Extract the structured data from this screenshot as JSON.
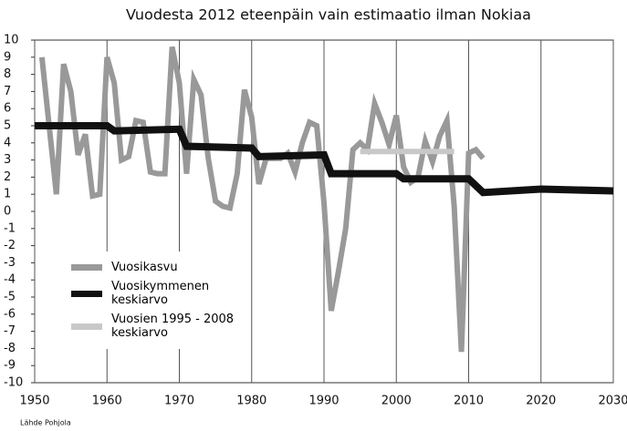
{
  "chart_data": {
    "type": "line",
    "title": "Vuodesta 2012 eteenpäin vain estimaatio ilman Nokiaa",
    "source": "Lähde Pohjola",
    "xlim": [
      1950,
      2030
    ],
    "xticks": [
      1950,
      1960,
      1970,
      1980,
      1990,
      2000,
      2010,
      2020,
      2030
    ],
    "ylim": [
      -10,
      10
    ],
    "yticks": [
      10,
      9,
      8,
      7,
      6,
      5,
      4,
      3,
      2,
      1,
      0,
      -1,
      -2,
      -3,
      -4,
      -5,
      -6,
      -7,
      -8,
      -9,
      -10
    ],
    "grid": true,
    "legend": "lower left",
    "series": [
      {
        "name": "Vuosikasvu",
        "color": "#999999",
        "x": [
          1951,
          1952,
          1953,
          1954,
          1955,
          1956,
          1957,
          1958,
          1959,
          1960,
          1961,
          1962,
          1963,
          1964,
          1965,
          1966,
          1967,
          1968,
          1969,
          1970,
          1971,
          1972,
          1973,
          1974,
          1975,
          1976,
          1977,
          1978,
          1979,
          1980,
          1981,
          1982,
          1983,
          1984,
          1985,
          1986,
          1987,
          1988,
          1989,
          1990,
          1991,
          1992,
          1993,
          1994,
          1995,
          1996,
          1997,
          1998,
          1999,
          2000,
          2001,
          2002,
          2003,
          2004,
          2005,
          2006,
          2007,
          2008,
          2009,
          2010,
          2011,
          2012
        ],
        "values": [
          9,
          5,
          1,
          8.6,
          7,
          3.3,
          4.5,
          0.9,
          1,
          9,
          7.5,
          3,
          3.2,
          5.3,
          5.2,
          2.3,
          2.2,
          2.2,
          9.6,
          7.5,
          2.2,
          7.7,
          6.8,
          3.1,
          0.6,
          0.3,
          0.2,
          2.2,
          7.1,
          5.5,
          1.6,
          3.1,
          3.1,
          3.1,
          3.4,
          2.3,
          4,
          5.2,
          5,
          0.5,
          -5.8,
          -3.5,
          -1,
          3.6,
          4,
          3.6,
          6.3,
          5.2,
          3.9,
          5.6,
          2.6,
          1.7,
          2,
          4.1,
          2.9,
          4.4,
          5.3,
          0.3,
          -8.2,
          3.4,
          3.6,
          3.1
        ]
      },
      {
        "name": "Vuosikymmenen keskiarvo",
        "color": "#111111",
        "x": [
          1950,
          1960,
          1961,
          1970,
          1971,
          1980,
          1981,
          1990,
          1991,
          2000,
          2001,
          2010,
          2012,
          2020,
          2030
        ],
        "values": [
          5,
          5,
          4.7,
          4.8,
          3.8,
          3.7,
          3.2,
          3.3,
          2.2,
          2.2,
          1.9,
          1.9,
          1.1,
          1.3,
          1.2
        ]
      },
      {
        "name": "Vuosien 1995 - 2008 keskiarvo",
        "color": "#c8c8c8",
        "x": [
          1995,
          2008
        ],
        "values": [
          3.5,
          3.5
        ]
      }
    ]
  }
}
